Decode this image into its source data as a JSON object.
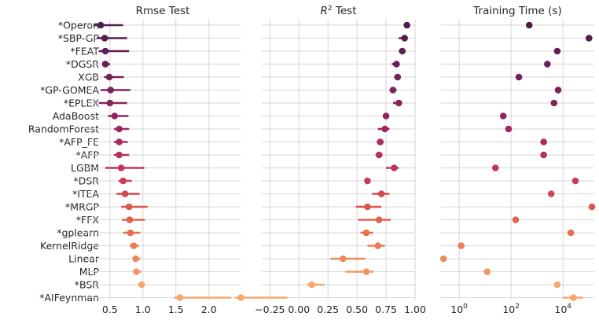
{
  "colors": {
    "grid": "#d6d6d6",
    "text": "#262626",
    "palette": [
      "#4e1d4c",
      "#541e4e",
      "#5e1f52",
      "#671f55",
      "#722257",
      "#7b2359",
      "#85245b",
      "#90255d",
      "#9d285f",
      "#a92c5e",
      "#b5305c",
      "#c2345a",
      "#ca3b56",
      "#d34852",
      "#db544e",
      "#e1624d",
      "#e6704f",
      "#ea7d55",
      "#ee8a5c",
      "#f19763",
      "#f5a76c"
    ]
  },
  "methods": [
    "*Operon",
    "*SBP-GP",
    "*FEAT",
    "*DGSR",
    "XGB",
    "*GP-GOMEA",
    "*EPLEX",
    "AdaBoost",
    "RandomForest",
    "*AFP_FE",
    "*AFP",
    "LGBM",
    "*DSR",
    "*ITEA",
    "*MRGP",
    "*FFX",
    "*gplearn",
    "KernelRidge",
    "Linear",
    "MLP",
    "*BSR",
    "*AIFeynman"
  ],
  "chart_data": [
    {
      "type": "scatter",
      "title": "Rmse Test",
      "scale": "linear",
      "xlim": [
        0.12,
        2.48
      ],
      "xticks": [
        0.5,
        1.0,
        1.5,
        2.0
      ],
      "xtick_labels": [
        "0.5",
        "1.0",
        "1.5",
        "2.0"
      ],
      "grid": true,
      "values": [
        0.36,
        0.42,
        0.43,
        0.43,
        0.49,
        0.51,
        0.5,
        0.57,
        0.64,
        0.64,
        0.64,
        0.67,
        0.7,
        0.73,
        0.79,
        0.8,
        0.81,
        0.86,
        0.89,
        0.9,
        0.98,
        1.56
      ],
      "ci_low": [
        0.25,
        0.3,
        0.33,
        0.38,
        0.41,
        0.36,
        0.33,
        0.47,
        0.56,
        0.56,
        0.56,
        0.43,
        0.63,
        0.6,
        0.67,
        0.68,
        0.7,
        0.8,
        0.84,
        0.85,
        0.96,
        1.47
      ],
      "ci_high": [
        0.7,
        0.76,
        0.79,
        0.5,
        0.71,
        0.81,
        0.76,
        0.78,
        0.79,
        0.77,
        0.79,
        1.02,
        0.83,
        0.95,
        1.07,
        1.03,
        0.96,
        0.94,
        0.96,
        0.97,
        1.02,
        2.34
      ]
    },
    {
      "type": "scatter",
      "title": "R² Test",
      "title_base": "R",
      "title_sup": "2",
      "title_rest": " Test",
      "scale": "linear",
      "xlim": [
        -0.32,
        1.0
      ],
      "xticks": [
        -0.25,
        0.0,
        0.25,
        0.5,
        0.75,
        1.0
      ],
      "xtick_labels": [
        "−0.25",
        "0.00",
        "0.25",
        "0.50",
        "0.75",
        "1.00"
      ],
      "grid": true,
      "values": [
        0.93,
        0.91,
        0.89,
        0.84,
        0.85,
        0.81,
        0.86,
        0.75,
        0.74,
        0.7,
        0.69,
        0.82,
        0.59,
        0.71,
        0.59,
        0.69,
        0.58,
        0.68,
        0.38,
        0.58,
        0.11,
        -0.5
      ],
      "ci_low": [
        0.92,
        0.86,
        0.86,
        0.8,
        0.82,
        0.78,
        0.81,
        0.73,
        0.68,
        0.67,
        0.66,
        0.75,
        0.58,
        0.63,
        0.49,
        0.51,
        0.53,
        0.59,
        0.27,
        0.4,
        0.07,
        -0.55
      ],
      "ci_high": [
        0.94,
        0.93,
        0.91,
        0.86,
        0.87,
        0.84,
        0.88,
        0.77,
        0.78,
        0.73,
        0.72,
        0.86,
        0.6,
        0.78,
        0.71,
        0.79,
        0.64,
        0.74,
        0.57,
        0.64,
        0.22,
        -0.1
      ]
    },
    {
      "type": "scatter",
      "title": "Training Time (s)",
      "scale": "log",
      "xlim": [
        0.2,
        160000
      ],
      "xticks": [
        1,
        100,
        10000
      ],
      "xtick_labels": [
        "10^0",
        "10^2",
        "10^4"
      ],
      "grid": true,
      "values": [
        500,
        100000,
        6000,
        2500,
        200,
        6500,
        4500,
        50,
        80,
        1800,
        1800,
        25,
        30000,
        3500,
        130000,
        150,
        20000,
        1.2,
        0.25,
        12,
        6000,
        25000
      ],
      "ci_low": [
        450,
        95000,
        5800,
        2300,
        190,
        6200,
        4300,
        48,
        77,
        1700,
        1700,
        24,
        28000,
        3300,
        120000,
        130,
        19000,
        1.15,
        0.24,
        11,
        5500,
        10000
      ],
      "ci_high": [
        560,
        105000,
        6200,
        2700,
        210,
        6800,
        4700,
        52,
        83,
        1900,
        1900,
        26,
        32000,
        3700,
        145000,
        170,
        21000,
        1.25,
        0.26,
        13,
        6500,
        60000
      ]
    }
  ]
}
